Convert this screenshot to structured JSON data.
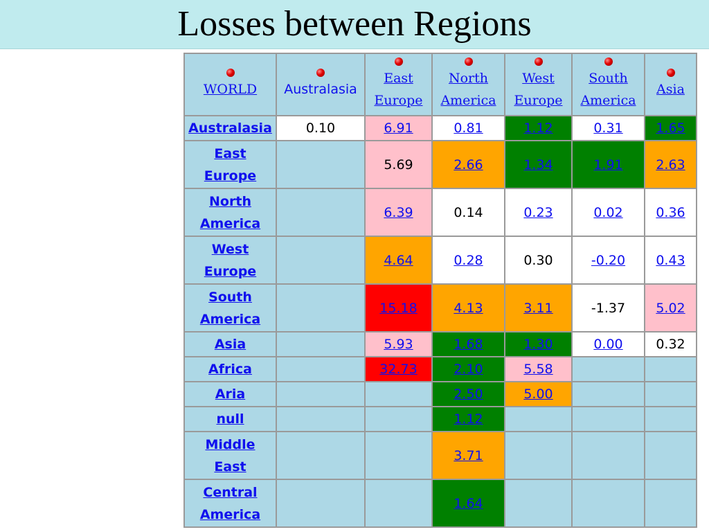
{
  "slide": {
    "title": "Losses between Regions"
  },
  "table": {
    "corner_label": "WORLD",
    "columns": [
      "Australasia",
      "East\nEurope",
      "North\nAmerica",
      "West\nEurope",
      "South\nAmerica",
      "Asia"
    ],
    "column_links": [
      false,
      true,
      true,
      true,
      true,
      true
    ],
    "colors": {
      "white": "#ffffff",
      "pink": "#ffc0cb",
      "orange": "#ffa500",
      "green": "#008000",
      "red": "#ff0000",
      "empty": "#add8e6"
    },
    "rows": [
      {
        "label": "Australasia",
        "cells": [
          {
            "v": "0.10",
            "c": "white",
            "link": false
          },
          {
            "v": "6.91",
            "c": "pink",
            "link": true
          },
          {
            "v": "0.81",
            "c": "white",
            "link": true
          },
          {
            "v": "1.12",
            "c": "green",
            "link": true
          },
          {
            "v": "0.31",
            "c": "white",
            "link": true
          },
          {
            "v": "1.65",
            "c": "green",
            "link": true
          }
        ]
      },
      {
        "label": "East\nEurope",
        "cells": [
          null,
          {
            "v": "5.69",
            "c": "pink",
            "link": false
          },
          {
            "v": "2.66",
            "c": "orange",
            "link": true
          },
          {
            "v": "1.34",
            "c": "green",
            "link": true
          },
          {
            "v": "1.91",
            "c": "green",
            "link": true
          },
          {
            "v": "2.63",
            "c": "orange",
            "link": true
          }
        ]
      },
      {
        "label": "North\nAmerica",
        "cells": [
          null,
          {
            "v": "6.39",
            "c": "pink",
            "link": true
          },
          {
            "v": "0.14",
            "c": "white",
            "link": false
          },
          {
            "v": "0.23",
            "c": "white",
            "link": true
          },
          {
            "v": "0.02",
            "c": "white",
            "link": true
          },
          {
            "v": "0.36",
            "c": "white",
            "link": true
          }
        ]
      },
      {
        "label": "West\nEurope",
        "cells": [
          null,
          {
            "v": "4.64",
            "c": "orange",
            "link": true
          },
          {
            "v": "0.28",
            "c": "white",
            "link": true
          },
          {
            "v": "0.30",
            "c": "white",
            "link": false
          },
          {
            "v": "-0.20",
            "c": "white",
            "link": true
          },
          {
            "v": "0.43",
            "c": "white",
            "link": true
          }
        ]
      },
      {
        "label": "South\nAmerica",
        "cells": [
          null,
          {
            "v": "15.18",
            "c": "red",
            "link": true
          },
          {
            "v": "4.13",
            "c": "orange",
            "link": true
          },
          {
            "v": "3.11",
            "c": "orange",
            "link": true
          },
          {
            "v": "-1.37",
            "c": "white",
            "link": false
          },
          {
            "v": "5.02",
            "c": "pink",
            "link": true
          }
        ]
      },
      {
        "label": "Asia",
        "cells": [
          null,
          {
            "v": "5.93",
            "c": "pink",
            "link": true
          },
          {
            "v": "1.68",
            "c": "green",
            "link": true
          },
          {
            "v": "1.30",
            "c": "green",
            "link": true
          },
          {
            "v": "0.00",
            "c": "white",
            "link": true
          },
          {
            "v": "0.32",
            "c": "white",
            "link": false
          }
        ]
      },
      {
        "label": "Africa",
        "cells": [
          null,
          {
            "v": "32.73",
            "c": "red",
            "link": true
          },
          {
            "v": "2.10",
            "c": "green",
            "link": true
          },
          {
            "v": "5.58",
            "c": "pink",
            "link": true
          },
          null,
          null
        ]
      },
      {
        "label": "Aria",
        "cells": [
          null,
          null,
          {
            "v": "2.50",
            "c": "green",
            "link": true
          },
          {
            "v": "5.00",
            "c": "orange",
            "link": true
          },
          null,
          null
        ]
      },
      {
        "label": "null",
        "cells": [
          null,
          null,
          {
            "v": "1.12",
            "c": "green",
            "link": true
          },
          null,
          null,
          null
        ]
      },
      {
        "label": "Middle\nEast",
        "cells": [
          null,
          null,
          {
            "v": "3.71",
            "c": "orange",
            "link": true
          },
          null,
          null,
          null
        ]
      },
      {
        "label": "Central\nAmerica",
        "cells": [
          null,
          null,
          {
            "v": "1.64",
            "c": "green",
            "link": true
          },
          null,
          null,
          null
        ]
      }
    ]
  }
}
